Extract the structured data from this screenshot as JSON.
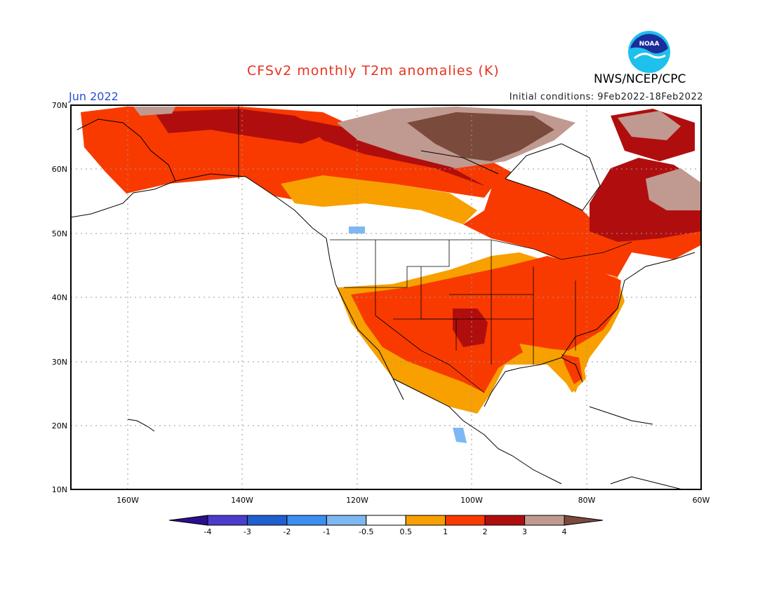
{
  "header": {
    "title": "CFSv2 monthly T2m anomalies (K)",
    "month": "Jun 2022",
    "initial_conditions": "Initial conditions: 9Feb2022-18Feb2022",
    "agency": "NWS/NCEP/CPC",
    "logo_text": "NOAA"
  },
  "map": {
    "lat_labels": [
      "70N",
      "60N",
      "50N",
      "40N",
      "30N",
      "20N",
      "10N"
    ],
    "lon_labels": [
      "160W",
      "140W",
      "120W",
      "100W",
      "80W",
      "60W"
    ],
    "extent": {
      "lon": [
        -170,
        -60
      ],
      "lat": [
        10,
        70
      ]
    },
    "regions": [
      {
        "name": "alaska",
        "anomaly": "1-2"
      },
      {
        "name": "northern-canada",
        "anomaly": "2-4"
      },
      {
        "name": "pacific-northwest",
        "anomaly": "-0.5-0.5"
      },
      {
        "name": "central-us",
        "anomaly": "1-3"
      },
      {
        "name": "southeast-us",
        "anomaly": "1-2"
      },
      {
        "name": "eastern-canada",
        "anomaly": "1-3"
      }
    ]
  },
  "colorbar": {
    "ticks": [
      "-4",
      "-3",
      "-2",
      "-1",
      "-0.5",
      "0.5",
      "1",
      "2",
      "3",
      "4"
    ],
    "colors": [
      "#2a0f8c",
      "#4b3ccc",
      "#1f5fd0",
      "#3c8ff0",
      "#7eb8f3",
      "#ffffff",
      "#f7a000",
      "#f83a00",
      "#b00e0e",
      "#c09a90",
      "#7a4a3c"
    ]
  },
  "palette": {
    "title": "#e8321f",
    "month": "#2a4fd8",
    "c05_1": "#f7a000",
    "c1_2": "#f83a00",
    "c2_3": "#b00e0e",
    "c3_4": "#c09a90",
    "c4p": "#7a4a3c",
    "cneg": "#7eb8f3"
  }
}
